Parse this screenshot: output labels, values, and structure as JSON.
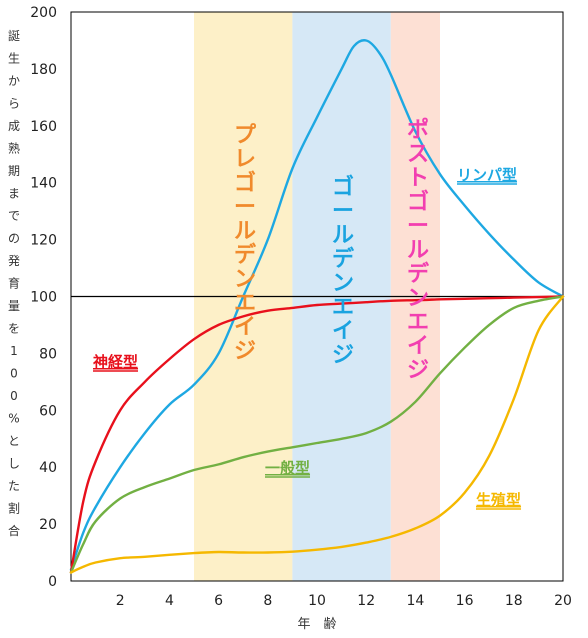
{
  "chart_data": {
    "type": "line",
    "xlabel": "年　齢",
    "ylabel": "誕生から成熟期までの発育量を100%とした割合",
    "xlim": [
      0,
      20
    ],
    "ylim": [
      0,
      200
    ],
    "x_ticks": [
      2,
      4,
      6,
      8,
      10,
      12,
      14,
      16,
      18,
      20
    ],
    "y_ticks": [
      0,
      20,
      40,
      60,
      80,
      100,
      120,
      140,
      160,
      180,
      200
    ],
    "reference_line": 100,
    "bands": [
      {
        "label": "プレゴールデンエイジ",
        "from": 5,
        "to": 9,
        "color": "#fdf0c8",
        "text_color": "#f08a2c"
      },
      {
        "label": "ゴールデンエイジ",
        "from": 9,
        "to": 13,
        "color": "#d6e8f6",
        "text_color": "#1aa3e0"
      },
      {
        "label": "ポストゴールデンエイジ",
        "from": 13,
        "to": 15,
        "color": "#fde0d4",
        "text_color": "#f23fb0"
      }
    ],
    "series": [
      {
        "name": "リンパ型",
        "color": "#1ea8e2",
        "x": [
          0,
          0.5,
          1,
          2,
          3,
          4,
          5,
          6,
          7,
          8,
          9,
          10,
          11,
          11.5,
          12,
          12.5,
          13,
          14,
          15,
          16,
          17,
          18,
          19,
          20
        ],
        "y": [
          4,
          17,
          26,
          40,
          52,
          62,
          69,
          80,
          100,
          120,
          145,
          163,
          180,
          188,
          190,
          186,
          178,
          158,
          143,
          132,
          122,
          113,
          105,
          100
        ]
      },
      {
        "name": "神経型",
        "color": "#e8101c",
        "x": [
          0,
          0.5,
          1,
          2,
          3,
          4,
          5,
          6,
          7,
          8,
          9,
          10,
          11,
          12,
          13,
          14,
          15,
          16,
          17,
          18,
          19,
          20
        ],
        "y": [
          3,
          28,
          42,
          60,
          70,
          78,
          85,
          90,
          93,
          95,
          96,
          97,
          97.5,
          98,
          98.5,
          98.7,
          99,
          99.2,
          99.4,
          99.6,
          99.8,
          100
        ]
      },
      {
        "name": "一般型",
        "color": "#72b043",
        "x": [
          0,
          0.5,
          1,
          2,
          3,
          4,
          5,
          6,
          7,
          8,
          9,
          10,
          11,
          12,
          13,
          14,
          15,
          16,
          17,
          18,
          19,
          20
        ],
        "y": [
          3,
          13,
          21,
          29,
          33,
          36,
          39,
          41,
          43.5,
          45.5,
          47,
          48.5,
          50,
          52,
          56,
          63,
          73,
          82,
          90,
          96,
          98.5,
          100
        ]
      },
      {
        "name": "生殖型",
        "color": "#f5b800",
        "x": [
          0,
          0.5,
          1,
          2,
          3,
          4,
          5,
          6,
          7,
          8,
          9,
          10,
          11,
          12,
          13,
          14,
          15,
          16,
          17,
          18,
          19,
          20
        ],
        "y": [
          3,
          5,
          6.5,
          8,
          8.5,
          9.2,
          9.8,
          10.2,
          10,
          10,
          10.3,
          11,
          12,
          13.5,
          15.5,
          18.5,
          23,
          31,
          44,
          64,
          88,
          100
        ]
      }
    ]
  }
}
